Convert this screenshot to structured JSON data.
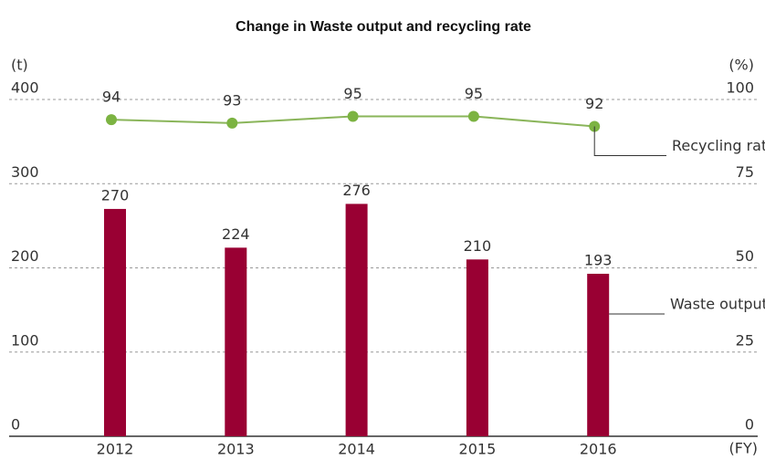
{
  "chart_data": {
    "type": "bar_line",
    "title": "Change in Waste output and recycling rate",
    "y_label": "(t)",
    "y2_label": "(%)",
    "x_label": "(FY)",
    "categories": [
      "2012",
      "2013",
      "2014",
      "2015",
      "2016"
    ],
    "series": [
      {
        "name": "Waste output",
        "color": "#990033",
        "values": [
          270,
          224,
          276,
          210,
          193
        ]
      },
      {
        "name": "Recycling rate",
        "color": "#8ab55a",
        "values": [
          94,
          93,
          95,
          95,
          92
        ],
        "axis": "y2"
      }
    ],
    "ylim": [
      0,
      400
    ],
    "yticks": [
      0,
      100,
      200,
      300,
      400
    ],
    "y2lim": [
      0,
      100
    ],
    "y2ticks": [
      0,
      25,
      50,
      75,
      100
    ],
    "grid": true
  }
}
